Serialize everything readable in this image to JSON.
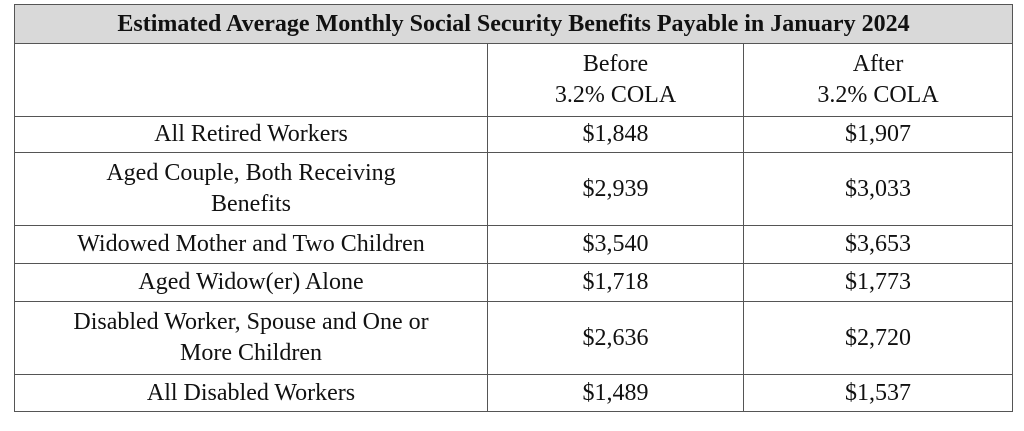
{
  "table": {
    "title": "Estimated Average Monthly Social Security Benefits Payable in January 2024",
    "columns": [
      [
        "Before",
        "3.2% COLA"
      ],
      [
        "After",
        "3.2% COLA"
      ]
    ],
    "rows": [
      {
        "label": [
          "All Retired Workers"
        ],
        "values": [
          "$1,848",
          "$1,907"
        ]
      },
      {
        "label": [
          "Aged Couple, Both Receiving",
          "Benefits"
        ],
        "values": [
          "$2,939",
          "$3,033"
        ]
      },
      {
        "label": [
          "Widowed Mother and Two Children"
        ],
        "values": [
          "$3,540",
          "$3,653"
        ]
      },
      {
        "label": [
          "Aged Widow(er) Alone"
        ],
        "values": [
          "$1,718",
          "$1,773"
        ]
      },
      {
        "label": [
          "Disabled Worker, Spouse and One or",
          "More Children"
        ],
        "values": [
          "$2,636",
          "$2,720"
        ]
      },
      {
        "label": [
          "All Disabled Workers"
        ],
        "values": [
          "$1,489",
          "$1,537"
        ]
      }
    ]
  }
}
